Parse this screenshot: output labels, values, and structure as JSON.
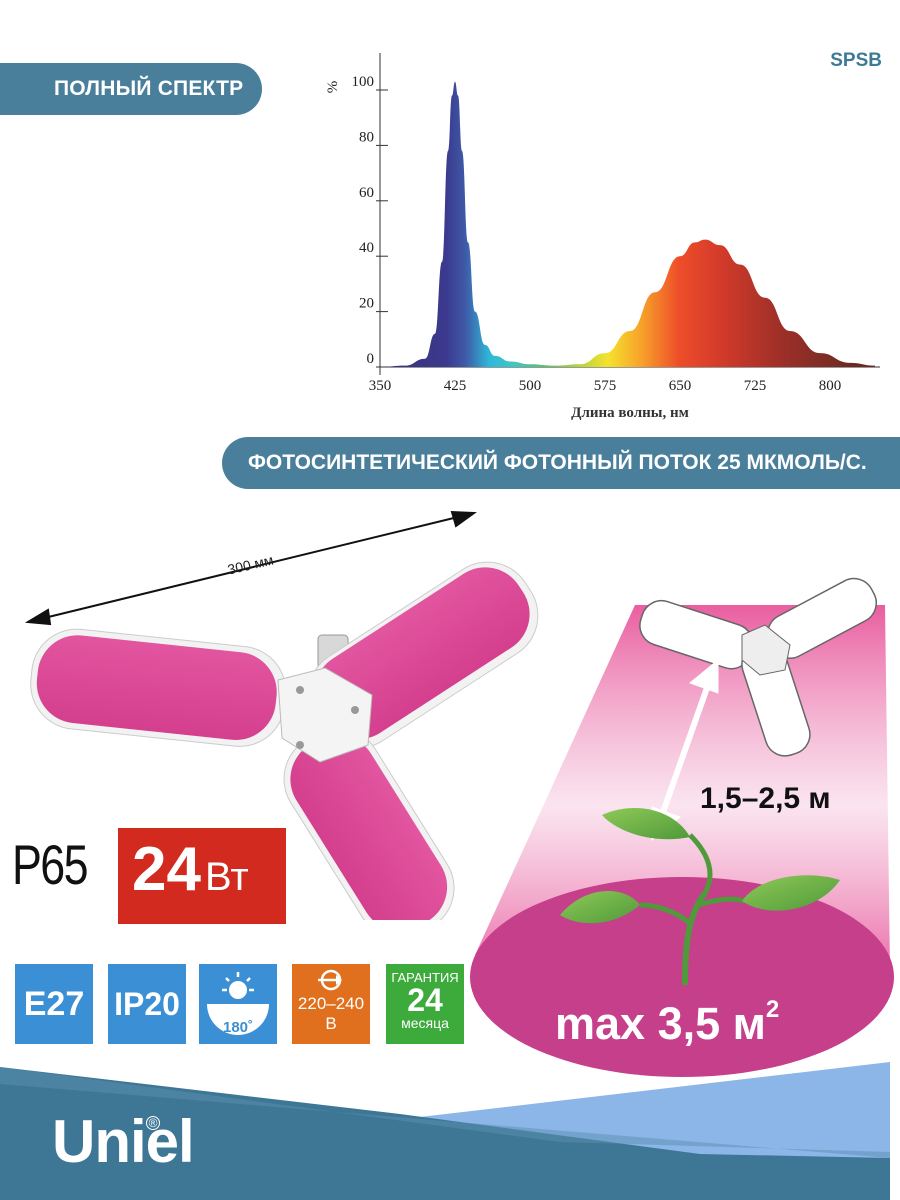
{
  "sku": "SPSB",
  "ribbons": {
    "spectrum": "ПОЛНЫЙ СПЕКТР",
    "photon_flux": "ФОТОСИНТЕТИЧЕСКИЙ ФОТОННЫЙ ПОТОК 25 МКМОЛЬ/С."
  },
  "chart_data": {
    "type": "area",
    "ylabel": "%",
    "xlabel": "Длина волны, нм",
    "xlim": [
      350,
      850
    ],
    "ylim": [
      0,
      100
    ],
    "x_ticks": [
      350,
      425,
      500,
      575,
      650,
      725,
      800
    ],
    "y_ticks": [
      0,
      20,
      40,
      60,
      80,
      100
    ],
    "grid": false,
    "series": [
      {
        "x": [
          350,
          375,
          395,
          405,
          412,
          418,
          422,
          425,
          428,
          432,
          438,
          445,
          455,
          465,
          480,
          500,
          525,
          550,
          575,
          600,
          625,
          650,
          665,
          675,
          690,
          710,
          735,
          760,
          790,
          820,
          845
        ],
        "values": [
          0,
          0.5,
          3,
          12,
          38,
          78,
          98,
          103,
          98,
          78,
          45,
          20,
          8,
          4,
          2,
          1,
          0.5,
          1,
          5,
          13,
          27,
          40,
          45,
          46,
          44,
          37,
          25,
          13,
          5,
          1.5,
          0.5
        ]
      }
    ]
  },
  "dimensions": {
    "width_label": "300 мм",
    "height_label": "1,5–2,5 м",
    "area_label": "max 3,5 м",
    "area_sup": "2"
  },
  "model": "P65",
  "power": {
    "value": "24",
    "unit": "Вт"
  },
  "badges": {
    "socket": "E27",
    "ip": "IP20",
    "angle": "180˚",
    "voltage_range": "220–240",
    "voltage_unit": "В",
    "warranty_title": "ГАРАНТИЯ",
    "warranty_value": "24",
    "warranty_unit": "месяца"
  },
  "brand": "Uniel",
  "colors": {
    "ribbon": "#4a7f9c",
    "power_badge": "#d22a1e",
    "badge_blue": "#3b8fd4",
    "badge_orange": "#e0701e",
    "badge_green": "#3daa3c",
    "lamp_pink": "#e0409a"
  }
}
